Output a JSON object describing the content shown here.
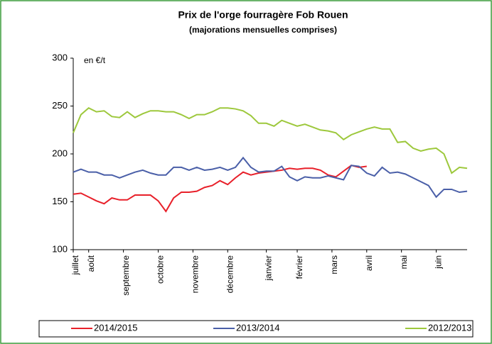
{
  "chart_data": {
    "type": "line",
    "title": "Prix de l'orge fourragère Fob Rouen",
    "subtitle": "(majorations mensuelles comprises)",
    "annotation": "en €/t",
    "x": [
      1,
      2,
      3,
      4,
      5,
      6,
      7,
      8,
      9,
      10,
      11,
      12,
      13,
      14,
      15,
      16,
      17,
      18,
      19,
      20,
      21,
      22,
      23,
      24,
      25,
      26,
      27,
      28,
      29,
      30,
      31,
      32,
      33,
      34,
      35,
      36,
      37,
      38,
      39,
      40,
      41,
      42,
      43,
      44,
      45,
      46,
      47,
      48,
      49,
      50,
      51,
      52
    ],
    "xlim": [
      1,
      52
    ],
    "xticks": [
      {
        "value": 1,
        "label": "juillet"
      },
      {
        "value": 3,
        "label": "août"
      },
      {
        "value": 7.5,
        "label": "septembre"
      },
      {
        "value": 12,
        "label": "octobre"
      },
      {
        "value": 16.5,
        "label": "novembre"
      },
      {
        "value": 21,
        "label": "décembre"
      },
      {
        "value": 26,
        "label": "janvier"
      },
      {
        "value": 30,
        "label": "février"
      },
      {
        "value": 34.5,
        "label": "mars"
      },
      {
        "value": 39,
        "label": "avril"
      },
      {
        "value": 43.5,
        "label": "mai"
      },
      {
        "value": 48,
        "label": "juin"
      }
    ],
    "ylim": [
      100,
      300
    ],
    "yticks": [
      100,
      150,
      200,
      250,
      300
    ],
    "legend": "bottom",
    "series": [
      {
        "name": "2014/2015",
        "color": "#e8202a",
        "values": [
          158,
          159,
          155,
          151,
          148,
          154,
          152,
          152,
          157,
          157,
          157,
          151,
          140,
          154,
          160,
          160,
          161,
          165,
          167,
          172,
          168,
          175,
          181,
          178,
          180,
          181,
          182,
          183,
          185,
          184,
          185,
          185,
          183,
          178,
          176,
          182,
          188,
          186,
          187,
          null,
          null,
          null,
          null,
          null,
          null,
          null,
          null,
          null,
          null,
          null,
          null,
          null
        ]
      },
      {
        "name": "2013/2014",
        "color": "#4a5fa8",
        "values": [
          181,
          184,
          181,
          181,
          178,
          178,
          175,
          178,
          181,
          183,
          180,
          178,
          178,
          186,
          186,
          183,
          186,
          183,
          184,
          186,
          183,
          186,
          196,
          186,
          181,
          182,
          182,
          187,
          176,
          172,
          176,
          175,
          175,
          177,
          175,
          173,
          188,
          187,
          180,
          177,
          186,
          180,
          181,
          179,
          175,
          171,
          167,
          155,
          163,
          163,
          160,
          161
        ]
      },
      {
        "name": "2012/2013",
        "color": "#9dc83c",
        "values": [
          222,
          241,
          248,
          244,
          245,
          239,
          238,
          244,
          238,
          242,
          245,
          245,
          244,
          244,
          241,
          237,
          241,
          241,
          244,
          248,
          248,
          247,
          245,
          240,
          232,
          232,
          229,
          235,
          232,
          229,
          231,
          228,
          225,
          224,
          222,
          215,
          220,
          223,
          226,
          228,
          226,
          226,
          212,
          213,
          206,
          203,
          205,
          206,
          200,
          180,
          186,
          185
        ]
      }
    ]
  }
}
